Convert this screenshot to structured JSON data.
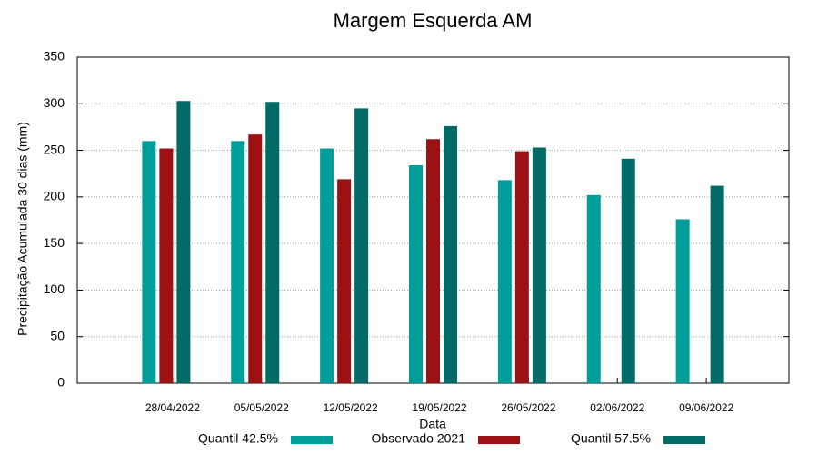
{
  "chart_data": {
    "type": "bar",
    "title": "Margem Esquerda AM",
    "x_label": "Data",
    "y_label": "Precipitação Acumulada 30 dias (mm)",
    "categories": [
      "28/04/2022",
      "05/05/2022",
      "12/05/2022",
      "19/05/2022",
      "26/05/2022",
      "02/06/2022",
      "09/06/2022"
    ],
    "series": [
      {
        "name": "Quantil 42.5%",
        "color": "#009e9b",
        "values": [
          260,
          260,
          252,
          234,
          218,
          202,
          176
        ]
      },
      {
        "name": "Observado 2021",
        "color": "#9c1212",
        "values": [
          252,
          267,
          219,
          262,
          249,
          null,
          null
        ]
      },
      {
        "name": "Quantil 57.5%",
        "color": "#006b66",
        "values": [
          303,
          302,
          295,
          276,
          253,
          241,
          212
        ]
      }
    ],
    "ylim": [
      0,
      350
    ],
    "yticks": [
      0,
      50,
      100,
      150,
      200,
      250,
      300,
      350
    ],
    "grid": true
  }
}
